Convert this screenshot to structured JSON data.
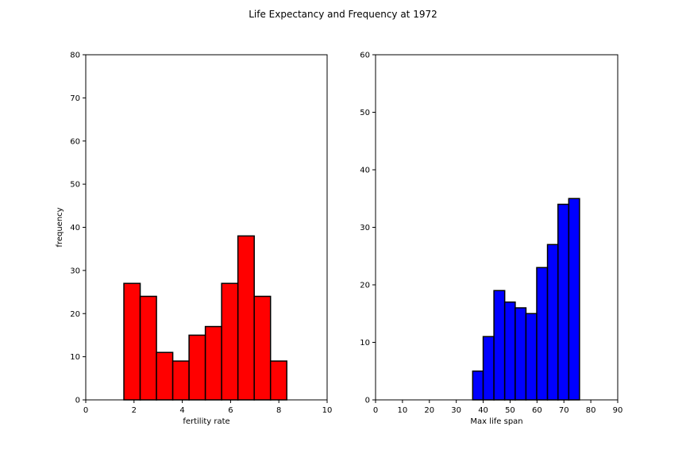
{
  "figure": {
    "title": "Life Expectancy and Frequency at 1972"
  },
  "chart_data": [
    {
      "type": "bar",
      "chart_kind": "histogram",
      "xlabel": "fertility rate",
      "ylabel": "frequency",
      "xlim": [
        0,
        10
      ],
      "ylim": [
        0,
        80
      ],
      "xticks": [
        0,
        2,
        4,
        6,
        8,
        10
      ],
      "yticks": [
        0,
        10,
        20,
        30,
        40,
        50,
        60,
        70,
        80
      ],
      "bin_edges": [
        1.58,
        2.255,
        2.93,
        3.605,
        4.28,
        4.955,
        5.63,
        6.305,
        6.98,
        7.655,
        8.33
      ],
      "values": [
        27,
        24,
        11,
        9,
        15,
        17,
        27,
        38,
        24,
        9
      ],
      "color": "#ff0000",
      "edge_color": "#000000",
      "grid": false
    },
    {
      "type": "bar",
      "chart_kind": "histogram",
      "xlabel": "Max life span",
      "ylabel": "",
      "xlim": [
        0,
        90
      ],
      "ylim": [
        0,
        60
      ],
      "xticks": [
        0,
        10,
        20,
        30,
        40,
        50,
        60,
        70,
        80,
        90
      ],
      "yticks": [
        0,
        10,
        20,
        30,
        40,
        50,
        60
      ],
      "bin_edges": [
        36.1,
        40.0,
        44.0,
        48.0,
        51.9,
        55.9,
        59.9,
        63.9,
        67.8,
        71.8,
        75.8
      ],
      "values": [
        5,
        11,
        19,
        17,
        16,
        15,
        23,
        27,
        34,
        35
      ],
      "color": "#0000ff",
      "edge_color": "#000000",
      "grid": false
    }
  ]
}
